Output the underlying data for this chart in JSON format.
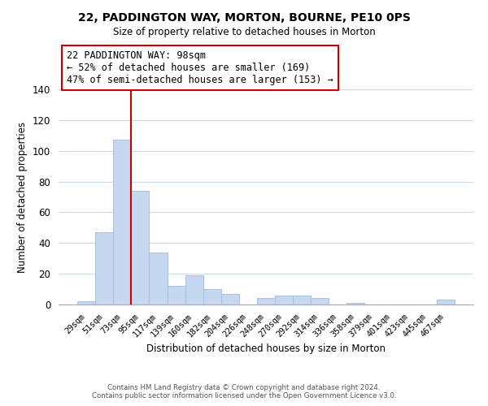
{
  "title": "22, PADDINGTON WAY, MORTON, BOURNE, PE10 0PS",
  "subtitle": "Size of property relative to detached houses in Morton",
  "xlabel": "Distribution of detached houses by size in Morton",
  "ylabel": "Number of detached properties",
  "categories": [
    "29sqm",
    "51sqm",
    "73sqm",
    "95sqm",
    "117sqm",
    "139sqm",
    "160sqm",
    "182sqm",
    "204sqm",
    "226sqm",
    "248sqm",
    "270sqm",
    "292sqm",
    "314sqm",
    "336sqm",
    "358sqm",
    "379sqm",
    "401sqm",
    "423sqm",
    "445sqm",
    "467sqm"
  ],
  "values": [
    2,
    47,
    107,
    74,
    34,
    12,
    19,
    10,
    7,
    0,
    4,
    6,
    6,
    4,
    0,
    1,
    0,
    0,
    0,
    0,
    3
  ],
  "bar_color": "#c5d8f0",
  "bar_edge_color": "#a8c0de",
  "vline_color": "#cc0000",
  "ylim": [
    0,
    140
  ],
  "yticks": [
    0,
    20,
    40,
    60,
    80,
    100,
    120,
    140
  ],
  "annotation_title": "22 PADDINGTON WAY: 98sqm",
  "annotation_line1": "← 52% of detached houses are smaller (169)",
  "annotation_line2": "47% of semi-detached houses are larger (153) →",
  "annotation_box_color": "#ffffff",
  "annotation_box_edge": "#cc0000",
  "footer_line1": "Contains HM Land Registry data © Crown copyright and database right 2024.",
  "footer_line2": "Contains public sector information licensed under the Open Government Licence v3.0.",
  "background_color": "#ffffff",
  "grid_color": "#ccd9e8"
}
